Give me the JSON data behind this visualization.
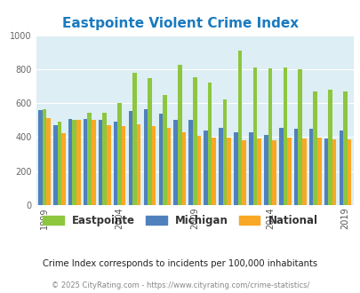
{
  "title": "Eastpointe Violent Crime Index",
  "subtitle": "Crime Index corresponds to incidents per 100,000 inhabitants",
  "footer": "© 2025 CityRating.com - https://www.cityrating.com/crime-statistics/",
  "years": [
    1999,
    2000,
    2001,
    2002,
    2003,
    2004,
    2005,
    2006,
    2007,
    2008,
    2009,
    2010,
    2011,
    2012,
    2013,
    2014,
    2015,
    2016,
    2017,
    2018,
    2019
  ],
  "eastpointe": [
    565,
    490,
    500,
    545,
    545,
    600,
    780,
    745,
    650,
    825,
    750,
    720,
    620,
    910,
    810,
    805,
    808,
    800,
    670,
    680,
    670
  ],
  "michigan": [
    560,
    470,
    505,
    505,
    500,
    490,
    555,
    565,
    540,
    500,
    500,
    440,
    455,
    430,
    428,
    415,
    455,
    450,
    450,
    390,
    440
  ],
  "national": [
    510,
    425,
    500,
    500,
    470,
    465,
    475,
    465,
    455,
    430,
    405,
    395,
    395,
    380,
    393,
    380,
    395,
    390,
    395,
    385,
    385
  ],
  "bar_width": 0.27,
  "ylim": [
    0,
    1000
  ],
  "yticks": [
    0,
    200,
    400,
    600,
    800,
    1000
  ],
  "xtick_years": [
    1999,
    2004,
    2009,
    2014,
    2019
  ],
  "color_eastpointe": "#8dc63f",
  "color_michigan": "#4f81bd",
  "color_national": "#f9a825",
  "bg_color": "#ddeef4",
  "title_color": "#1a7abf",
  "subtitle_color": "#222222",
  "footer_color": "#888888",
  "legend_labels": [
    "Eastpointe",
    "Michigan",
    "National"
  ]
}
